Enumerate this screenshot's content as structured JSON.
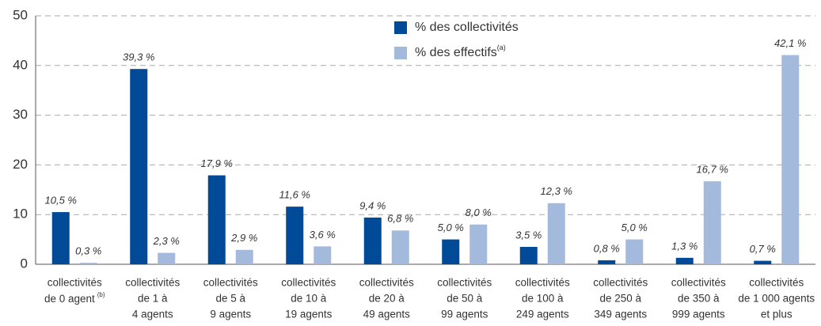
{
  "chart_data": {
    "type": "bar",
    "categories": [
      [
        "collectivités",
        {
          "text": "de 0 agent",
          "sup": "(b)"
        }
      ],
      [
        "collectivités",
        "de 1 à",
        "4 agents"
      ],
      [
        "collectivités",
        "de 5 à",
        "9 agents"
      ],
      [
        "collectivités",
        "de 10 à",
        "19 agents"
      ],
      [
        "collectivités",
        "de 20 à",
        "49 agents"
      ],
      [
        "collectivités",
        "de 50 à",
        "99 agents"
      ],
      [
        "collectivités",
        "de 100 à",
        "249 agents"
      ],
      [
        "collectivités",
        "de 250 à",
        "349 agents"
      ],
      [
        "collectivités",
        "de 350 à",
        "999 agents"
      ],
      [
        "collectivités",
        "de 1 000 agents",
        "et plus"
      ]
    ],
    "series": [
      {
        "name": "% des collectivités",
        "color": "#004a97",
        "values": [
          10.5,
          39.3,
          17.9,
          11.6,
          9.4,
          5.0,
          3.5,
          0.8,
          1.3,
          0.7
        ],
        "value_labels": [
          "10,5 %",
          "39,3 %",
          "17,9 %",
          "11,6 %",
          "9,4 %",
          "5,0 %",
          "3,5 %",
          "0,8 %",
          "1,3 %",
          "0,7 %"
        ]
      },
      {
        "name": "% des effectifs",
        "name_sup": "(a)",
        "color": "#a4badd",
        "values": [
          0.3,
          2.3,
          2.9,
          3.6,
          6.8,
          8.0,
          12.3,
          5.0,
          16.7,
          42.1
        ],
        "value_labels": [
          "0,3 %",
          "2,3 %",
          "2,9 %",
          "3,6 %",
          "6,8 %",
          "8,0 %",
          "12,3 %",
          "5,0 %",
          "16,7 %",
          "42,1 %"
        ]
      }
    ],
    "ylim": [
      0,
      50
    ],
    "yticks": [
      0,
      10,
      20,
      30,
      40,
      50
    ],
    "grid": true
  }
}
